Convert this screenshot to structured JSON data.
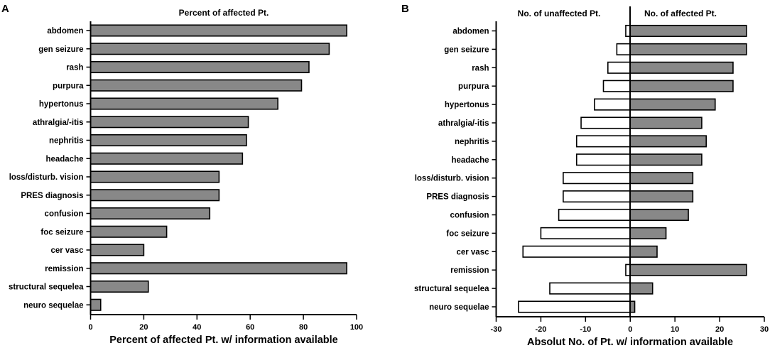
{
  "chart_data": [
    {
      "type": "bar",
      "orientation": "horizontal",
      "panel_label": "A",
      "title": "Percent of affected Pt.",
      "xlabel": "Percent of affected Pt. w/ information available",
      "ylabel": "",
      "xlim": [
        0,
        100
      ],
      "xticks": [
        "0",
        "20",
        "40",
        "60",
        "80",
        "100"
      ],
      "categories": [
        "abdomen",
        "gen seizure",
        "rash",
        "purpura",
        "hypertonus",
        "athralgia/-itis",
        "nephritis",
        "headache",
        "loss/disturb. vision",
        "PRES diagnosis",
        "confusion",
        "foc seizure",
        "cer vasc",
        "remission",
        "structural sequelea",
        "neuro sequelae"
      ],
      "values": [
        96.3,
        89.7,
        82.1,
        79.3,
        70.4,
        59.3,
        58.6,
        57.1,
        48.3,
        48.3,
        44.8,
        28.6,
        20.0,
        96.3,
        21.7,
        3.8
      ],
      "bar_color": "#888888",
      "grid": false
    },
    {
      "type": "bar",
      "orientation": "horizontal",
      "panel_label": "B",
      "title_left": "No. of unaffected Pt.",
      "title_right": "No. of affected Pt.",
      "xlabel": "Absolut No. of Pt. w/ information available",
      "ylabel": "",
      "xlim": [
        -30,
        30
      ],
      "xticks": [
        "-30",
        "-20",
        "-10",
        "0",
        "10",
        "20",
        "30"
      ],
      "categories": [
        "abdomen",
        "gen seizure",
        "rash",
        "purpura",
        "hypertonus",
        "athralgia/-itis",
        "nephritis",
        "headache",
        "loss/disturb. vision",
        "PRES diagnosis",
        "confusion",
        "foc seizure",
        "cer vasc",
        "remission",
        "structural sequelea",
        "neuro sequelae"
      ],
      "series": [
        {
          "name": "No. of unaffected Pt.",
          "values": [
            -1,
            -3,
            -5,
            -6,
            -8,
            -11,
            -12,
            -12,
            -15,
            -15,
            -16,
            -20,
            -24,
            -1,
            -18,
            -25
          ],
          "color": "#ffffff"
        },
        {
          "name": "No. of affected Pt.",
          "values": [
            26,
            26,
            23,
            23,
            19,
            16,
            17,
            16,
            14,
            14,
            13,
            8,
            6,
            26,
            5,
            1
          ],
          "color": "#888888"
        }
      ],
      "grid": false
    }
  ]
}
